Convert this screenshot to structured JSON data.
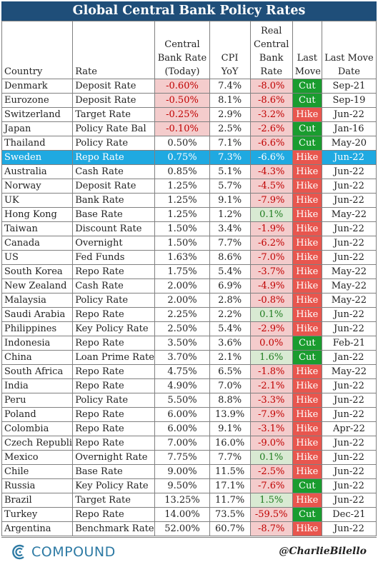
{
  "title": "Global Central Bank Policy Rates",
  "headers": {
    "country": "Country",
    "rate": "Rate",
    "cbrate": "Central Bank Rate (Today)",
    "cpi": "CPI YoY",
    "real": "Real Central Bank Rate",
    "move": "Last Move",
    "date": "Last Move Date"
  },
  "rows": [
    {
      "country": "Denmark",
      "rate": "Deposit Rate",
      "cb": "-0.60%",
      "cpi": "7.4%",
      "real": "-8.0%",
      "move": "Cut",
      "date": "Sep-21"
    },
    {
      "country": "Eurozone",
      "rate": "Deposit Rate",
      "cb": "-0.50%",
      "cpi": "8.1%",
      "real": "-8.6%",
      "move": "Cut",
      "date": "Sep-19"
    },
    {
      "country": "Switzerland",
      "rate": "Target Rate",
      "cb": "-0.25%",
      "cpi": "2.9%",
      "real": "-3.2%",
      "move": "Hike",
      "date": "Jun-22"
    },
    {
      "country": "Japan",
      "rate": "Policy Rate Bal",
      "cb": "-0.10%",
      "cpi": "2.5%",
      "real": "-2.6%",
      "move": "Cut",
      "date": "Jan-16"
    },
    {
      "country": "Thailand",
      "rate": "Policy Rate",
      "cb": "0.50%",
      "cpi": "7.1%",
      "real": "-6.6%",
      "move": "Cut",
      "date": "May-20"
    },
    {
      "country": "Sweden",
      "rate": "Repo Rate",
      "cb": "0.75%",
      "cpi": "7.3%",
      "real": "-6.6%",
      "move": "Hike",
      "date": "Jun-22"
    },
    {
      "country": "Australia",
      "rate": "Cash Rate",
      "cb": "0.85%",
      "cpi": "5.1%",
      "real": "-4.3%",
      "move": "Hike",
      "date": "Jun-22"
    },
    {
      "country": "Norway",
      "rate": "Deposit Rate",
      "cb": "1.25%",
      "cpi": "5.7%",
      "real": "-4.5%",
      "move": "Hike",
      "date": "Jun-22"
    },
    {
      "country": "UK",
      "rate": "Bank Rate",
      "cb": "1.25%",
      "cpi": "9.1%",
      "real": "-7.9%",
      "move": "Hike",
      "date": "Jun-22"
    },
    {
      "country": "Hong Kong",
      "rate": "Base Rate",
      "cb": "1.25%",
      "cpi": "1.2%",
      "real": "0.1%",
      "move": "Hike",
      "date": "May-22"
    },
    {
      "country": "Taiwan",
      "rate": "Discount Rate",
      "cb": "1.50%",
      "cpi": "3.4%",
      "real": "-1.9%",
      "move": "Hike",
      "date": "Jun-22"
    },
    {
      "country": "Canada",
      "rate": "Overnight",
      "cb": "1.50%",
      "cpi": "7.7%",
      "real": "-6.2%",
      "move": "Hike",
      "date": "Jun-22"
    },
    {
      "country": "US",
      "rate": "Fed Funds",
      "cb": "1.63%",
      "cpi": "8.6%",
      "real": "-7.0%",
      "move": "Hike",
      "date": "Jun-22"
    },
    {
      "country": "South Korea",
      "rate": "Repo Rate",
      "cb": "1.75%",
      "cpi": "5.4%",
      "real": "-3.7%",
      "move": "Hike",
      "date": "May-22"
    },
    {
      "country": "New Zealand",
      "rate": "Cash Rate",
      "cb": "2.00%",
      "cpi": "6.9%",
      "real": "-4.9%",
      "move": "Hike",
      "date": "May-22"
    },
    {
      "country": "Malaysia",
      "rate": "Policy Rate",
      "cb": "2.00%",
      "cpi": "2.8%",
      "real": "-0.8%",
      "move": "Hike",
      "date": "May-22"
    },
    {
      "country": "Saudi Arabia",
      "rate": "Repo Rate",
      "cb": "2.25%",
      "cpi": "2.2%",
      "real": "0.1%",
      "move": "Hike",
      "date": "Jun-22"
    },
    {
      "country": "Philippines",
      "rate": "Key Policy Rate",
      "cb": "2.50%",
      "cpi": "5.4%",
      "real": "-2.9%",
      "move": "Hike",
      "date": "Jun-22"
    },
    {
      "country": "Indonesia",
      "rate": "Repo Rate",
      "cb": "3.50%",
      "cpi": "3.6%",
      "real": "0.0%",
      "move": "Cut",
      "date": "Feb-21"
    },
    {
      "country": "China",
      "rate": "Loan Prime Rate",
      "cb": "3.70%",
      "cpi": "2.1%",
      "real": "1.6%",
      "move": "Cut",
      "date": "Jan-22"
    },
    {
      "country": "South Africa",
      "rate": "Repo Rate",
      "cb": "4.75%",
      "cpi": "6.5%",
      "real": "-1.8%",
      "move": "Hike",
      "date": "May-22"
    },
    {
      "country": "India",
      "rate": "Repo Rate",
      "cb": "4.90%",
      "cpi": "7.0%",
      "real": "-2.1%",
      "move": "Hike",
      "date": "Jun-22"
    },
    {
      "country": "Peru",
      "rate": "Policy Rate",
      "cb": "5.50%",
      "cpi": "8.8%",
      "real": "-3.3%",
      "move": "Hike",
      "date": "Jun-22"
    },
    {
      "country": "Poland",
      "rate": "Repo Rate",
      "cb": "6.00%",
      "cpi": "13.9%",
      "real": "-7.9%",
      "move": "Hike",
      "date": "Jun-22"
    },
    {
      "country": "Colombia",
      "rate": "Repo Rate",
      "cb": "6.00%",
      "cpi": "9.1%",
      "real": "-3.1%",
      "move": "Hike",
      "date": "Apr-22"
    },
    {
      "country": "Czech Republic",
      "rate": "Repo Rate",
      "cb": "7.00%",
      "cpi": "16.0%",
      "real": "-9.0%",
      "move": "Hike",
      "date": "Jun-22"
    },
    {
      "country": "Mexico",
      "rate": "Overnight Rate",
      "cb": "7.75%",
      "cpi": "7.7%",
      "real": "0.1%",
      "move": "Hike",
      "date": "Jun-22"
    },
    {
      "country": "Chile",
      "rate": "Base Rate",
      "cb": "9.00%",
      "cpi": "11.5%",
      "real": "-2.5%",
      "move": "Hike",
      "date": "Jun-22"
    },
    {
      "country": "Russia",
      "rate": "Key Policy Rate",
      "cb": "9.50%",
      "cpi": "17.1%",
      "real": "-7.6%",
      "move": "Cut",
      "date": "Jun-22"
    },
    {
      "country": "Brazil",
      "rate": "Target Rate",
      "cb": "13.25%",
      "cpi": "11.7%",
      "real": "1.5%",
      "move": "Hike",
      "date": "Jun-22"
    },
    {
      "country": "Turkey",
      "rate": "Repo Rate",
      "cb": "14.00%",
      "cpi": "73.5%",
      "real": "-59.5%",
      "move": "Cut",
      "date": "Dec-21"
    },
    {
      "country": "Argentina",
      "rate": "Benchmark Rate",
      "cb": "52.00%",
      "cpi": "60.7%",
      "real": "-8.7%",
      "move": "Hike",
      "date": "Jun-22"
    }
  ],
  "highlight_country": "Sweden",
  "footer": {
    "logo_text": "COMPOUND",
    "handle": "@CharlieBilello"
  },
  "colors": {
    "title_bg": "#1f4e79",
    "highlight_row": "#1fa9e1",
    "cut": "#1a9c2f",
    "hike": "#e8564e",
    "negative_bg": "#f4cccc",
    "positive_bg": "#d9ead3",
    "logo": "#2d7aa4"
  }
}
